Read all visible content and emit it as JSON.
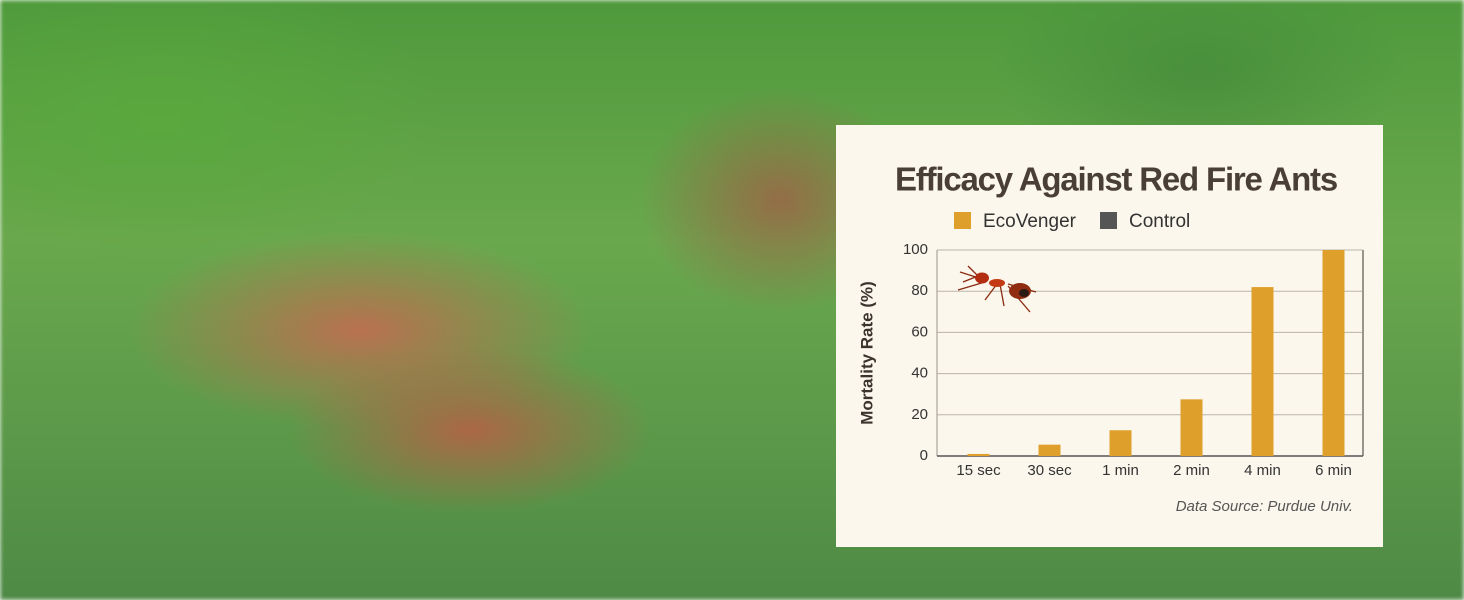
{
  "chart_data": {
    "type": "bar",
    "title": "Efficacy Against Red Fire Ants",
    "y_label": "Mortality Rate (%)",
    "source": "Data Source: Purdue Univ.",
    "categories": [
      "15 sec",
      "30 sec",
      "1 min",
      "2 min",
      "4 min",
      "6 min"
    ],
    "series": [
      {
        "name": "EcoVenger",
        "color": "#df9f2b",
        "values": [
          1,
          5.5,
          12.5,
          27.5,
          82,
          100
        ]
      },
      {
        "name": "Control",
        "color": "#555555",
        "values": [
          0,
          0,
          0,
          0,
          0,
          0
        ]
      }
    ],
    "ylim": [
      0,
      100
    ],
    "yticks": [
      0,
      20,
      40,
      60,
      80,
      100
    ],
    "grid": true
  }
}
